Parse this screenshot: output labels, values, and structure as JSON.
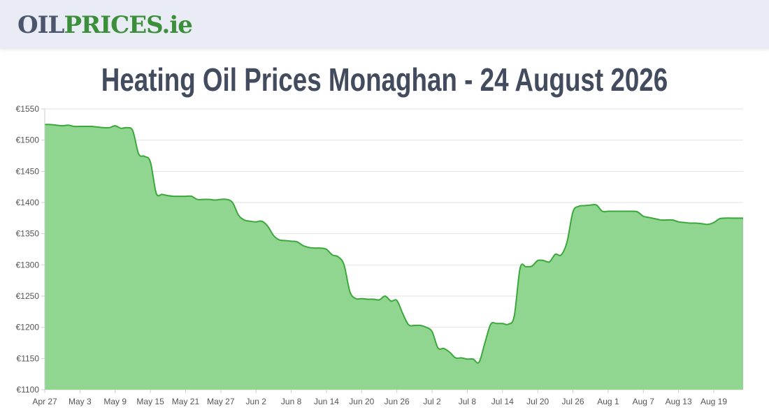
{
  "header": {
    "logo_part1": "OIL",
    "logo_part2": "PRICES",
    "logo_part3": ".ie"
  },
  "page_title": "Heating Oil Prices Monaghan - 24 August 2026",
  "colors": {
    "line": "#3aa83a",
    "fill": "#90d690",
    "grid": "#e2e2e2",
    "title": "#434b5e"
  },
  "chart_data": {
    "type": "area",
    "title": "Heating Oil Prices Monaghan - 24 August 2026",
    "xlabel": "",
    "ylabel": "",
    "ylim": [
      1100,
      1550
    ],
    "y_ticks": [
      1100,
      1150,
      1200,
      1250,
      1300,
      1350,
      1400,
      1450,
      1500,
      1550
    ],
    "y_tick_labels": [
      "€1100",
      "€1150",
      "€1200",
      "€1250",
      "€1300",
      "€1350",
      "€1400",
      "€1450",
      "€1500",
      "€1550"
    ],
    "x_range": [
      "2026-04-27",
      "2026-08-24"
    ],
    "x_tick_labels": [
      {
        "date": "2026-04-27",
        "label": "Apr 27"
      },
      {
        "date": "2026-05-03",
        "label": "May 3"
      },
      {
        "date": "2026-05-09",
        "label": "May 9"
      },
      {
        "date": "2026-05-15",
        "label": "May 15"
      },
      {
        "date": "2026-05-21",
        "label": "May 21"
      },
      {
        "date": "2026-05-27",
        "label": "May 27"
      },
      {
        "date": "2026-06-02",
        "label": "Jun 2"
      },
      {
        "date": "2026-06-08",
        "label": "Jun 8"
      },
      {
        "date": "2026-06-14",
        "label": "Jun 14"
      },
      {
        "date": "2026-06-20",
        "label": "Jun 20"
      },
      {
        "date": "2026-06-26",
        "label": "Jun 26"
      },
      {
        "date": "2026-07-02",
        "label": "Jul 2"
      },
      {
        "date": "2026-07-08",
        "label": "Jul 8"
      },
      {
        "date": "2026-07-14",
        "label": "Jul 14"
      },
      {
        "date": "2026-07-20",
        "label": "Jul 20"
      },
      {
        "date": "2026-07-26",
        "label": "Jul 26"
      },
      {
        "date": "2026-08-01",
        "label": "Aug 1"
      },
      {
        "date": "2026-08-07",
        "label": "Aug 7"
      },
      {
        "date": "2026-08-13",
        "label": "Aug 13"
      },
      {
        "date": "2026-08-19",
        "label": "Aug 19"
      }
    ],
    "grid": true,
    "legend": "none",
    "series": [
      {
        "points": [
          [
            "2026-04-27",
            1525
          ],
          [
            "2026-04-28",
            1525
          ],
          [
            "2026-04-29",
            1524
          ],
          [
            "2026-04-30",
            1523
          ],
          [
            "2026-05-01",
            1524
          ],
          [
            "2026-05-02",
            1522
          ],
          [
            "2026-05-03",
            1522
          ],
          [
            "2026-05-04",
            1522
          ],
          [
            "2026-05-05",
            1522
          ],
          [
            "2026-05-06",
            1521
          ],
          [
            "2026-05-07",
            1520
          ],
          [
            "2026-05-08",
            1520
          ],
          [
            "2026-05-09",
            1523
          ],
          [
            "2026-05-10",
            1519
          ],
          [
            "2026-05-11",
            1520
          ],
          [
            "2026-05-12",
            1515
          ],
          [
            "2026-05-13",
            1478
          ],
          [
            "2026-05-14",
            1474
          ],
          [
            "2026-05-15",
            1465
          ],
          [
            "2026-05-16",
            1415
          ],
          [
            "2026-05-17",
            1413
          ],
          [
            "2026-05-18",
            1411
          ],
          [
            "2026-05-19",
            1410
          ],
          [
            "2026-05-20",
            1410
          ],
          [
            "2026-05-21",
            1410
          ],
          [
            "2026-05-22",
            1410
          ],
          [
            "2026-05-23",
            1405
          ],
          [
            "2026-05-24",
            1405
          ],
          [
            "2026-05-25",
            1405
          ],
          [
            "2026-05-26",
            1404
          ],
          [
            "2026-05-27",
            1405
          ],
          [
            "2026-05-28",
            1405
          ],
          [
            "2026-05-29",
            1400
          ],
          [
            "2026-05-30",
            1380
          ],
          [
            "2026-05-31",
            1372
          ],
          [
            "2026-06-01",
            1370
          ],
          [
            "2026-06-02",
            1369
          ],
          [
            "2026-06-03",
            1370
          ],
          [
            "2026-06-04",
            1362
          ],
          [
            "2026-06-05",
            1347
          ],
          [
            "2026-06-06",
            1340
          ],
          [
            "2026-06-07",
            1339
          ],
          [
            "2026-06-08",
            1338
          ],
          [
            "2026-06-09",
            1337
          ],
          [
            "2026-06-10",
            1331
          ],
          [
            "2026-06-11",
            1328
          ],
          [
            "2026-06-12",
            1327
          ],
          [
            "2026-06-13",
            1327
          ],
          [
            "2026-06-14",
            1325
          ],
          [
            "2026-06-15",
            1316
          ],
          [
            "2026-06-16",
            1313
          ],
          [
            "2026-06-17",
            1300
          ],
          [
            "2026-06-18",
            1257
          ],
          [
            "2026-06-19",
            1246
          ],
          [
            "2026-06-20",
            1246
          ],
          [
            "2026-06-21",
            1245
          ],
          [
            "2026-06-22",
            1245
          ],
          [
            "2026-06-23",
            1244
          ],
          [
            "2026-06-24",
            1250
          ],
          [
            "2026-06-25",
            1242
          ],
          [
            "2026-06-26",
            1243
          ],
          [
            "2026-06-27",
            1222
          ],
          [
            "2026-06-28",
            1204
          ],
          [
            "2026-06-29",
            1203
          ],
          [
            "2026-06-30",
            1203
          ],
          [
            "2026-07-01",
            1200
          ],
          [
            "2026-07-02",
            1193
          ],
          [
            "2026-07-03",
            1167
          ],
          [
            "2026-07-04",
            1166
          ],
          [
            "2026-07-05",
            1160
          ],
          [
            "2026-07-06",
            1151
          ],
          [
            "2026-07-07",
            1151
          ],
          [
            "2026-07-08",
            1149
          ],
          [
            "2026-07-09",
            1149
          ],
          [
            "2026-07-10",
            1144
          ],
          [
            "2026-07-11",
            1175
          ],
          [
            "2026-07-12",
            1205
          ],
          [
            "2026-07-13",
            1206
          ],
          [
            "2026-07-14",
            1206
          ],
          [
            "2026-07-15",
            1205
          ],
          [
            "2026-07-16",
            1218
          ],
          [
            "2026-07-17",
            1295
          ],
          [
            "2026-07-18",
            1297
          ],
          [
            "2026-07-19",
            1298
          ],
          [
            "2026-07-20",
            1307
          ],
          [
            "2026-07-21",
            1307
          ],
          [
            "2026-07-22",
            1305
          ],
          [
            "2026-07-23",
            1317
          ],
          [
            "2026-07-24",
            1316
          ],
          [
            "2026-07-25",
            1337
          ],
          [
            "2026-07-26",
            1385
          ],
          [
            "2026-07-27",
            1394
          ],
          [
            "2026-07-28",
            1395
          ],
          [
            "2026-07-29",
            1396
          ],
          [
            "2026-07-30",
            1396
          ],
          [
            "2026-07-31",
            1386
          ],
          [
            "2026-08-01",
            1386
          ],
          [
            "2026-08-02",
            1386
          ],
          [
            "2026-08-03",
            1386
          ],
          [
            "2026-08-04",
            1386
          ],
          [
            "2026-08-05",
            1386
          ],
          [
            "2026-08-06",
            1385
          ],
          [
            "2026-08-07",
            1378
          ],
          [
            "2026-08-08",
            1376
          ],
          [
            "2026-08-09",
            1374
          ],
          [
            "2026-08-10",
            1372
          ],
          [
            "2026-08-11",
            1372
          ],
          [
            "2026-08-12",
            1372
          ],
          [
            "2026-08-13",
            1369
          ],
          [
            "2026-08-14",
            1368
          ],
          [
            "2026-08-15",
            1367
          ],
          [
            "2026-08-16",
            1367
          ],
          [
            "2026-08-17",
            1366
          ],
          [
            "2026-08-18",
            1365
          ],
          [
            "2026-08-19",
            1368
          ],
          [
            "2026-08-20",
            1374
          ],
          [
            "2026-08-21",
            1375
          ],
          [
            "2026-08-22",
            1375
          ],
          [
            "2026-08-23",
            1375
          ],
          [
            "2026-08-24",
            1375
          ]
        ]
      }
    ]
  }
}
